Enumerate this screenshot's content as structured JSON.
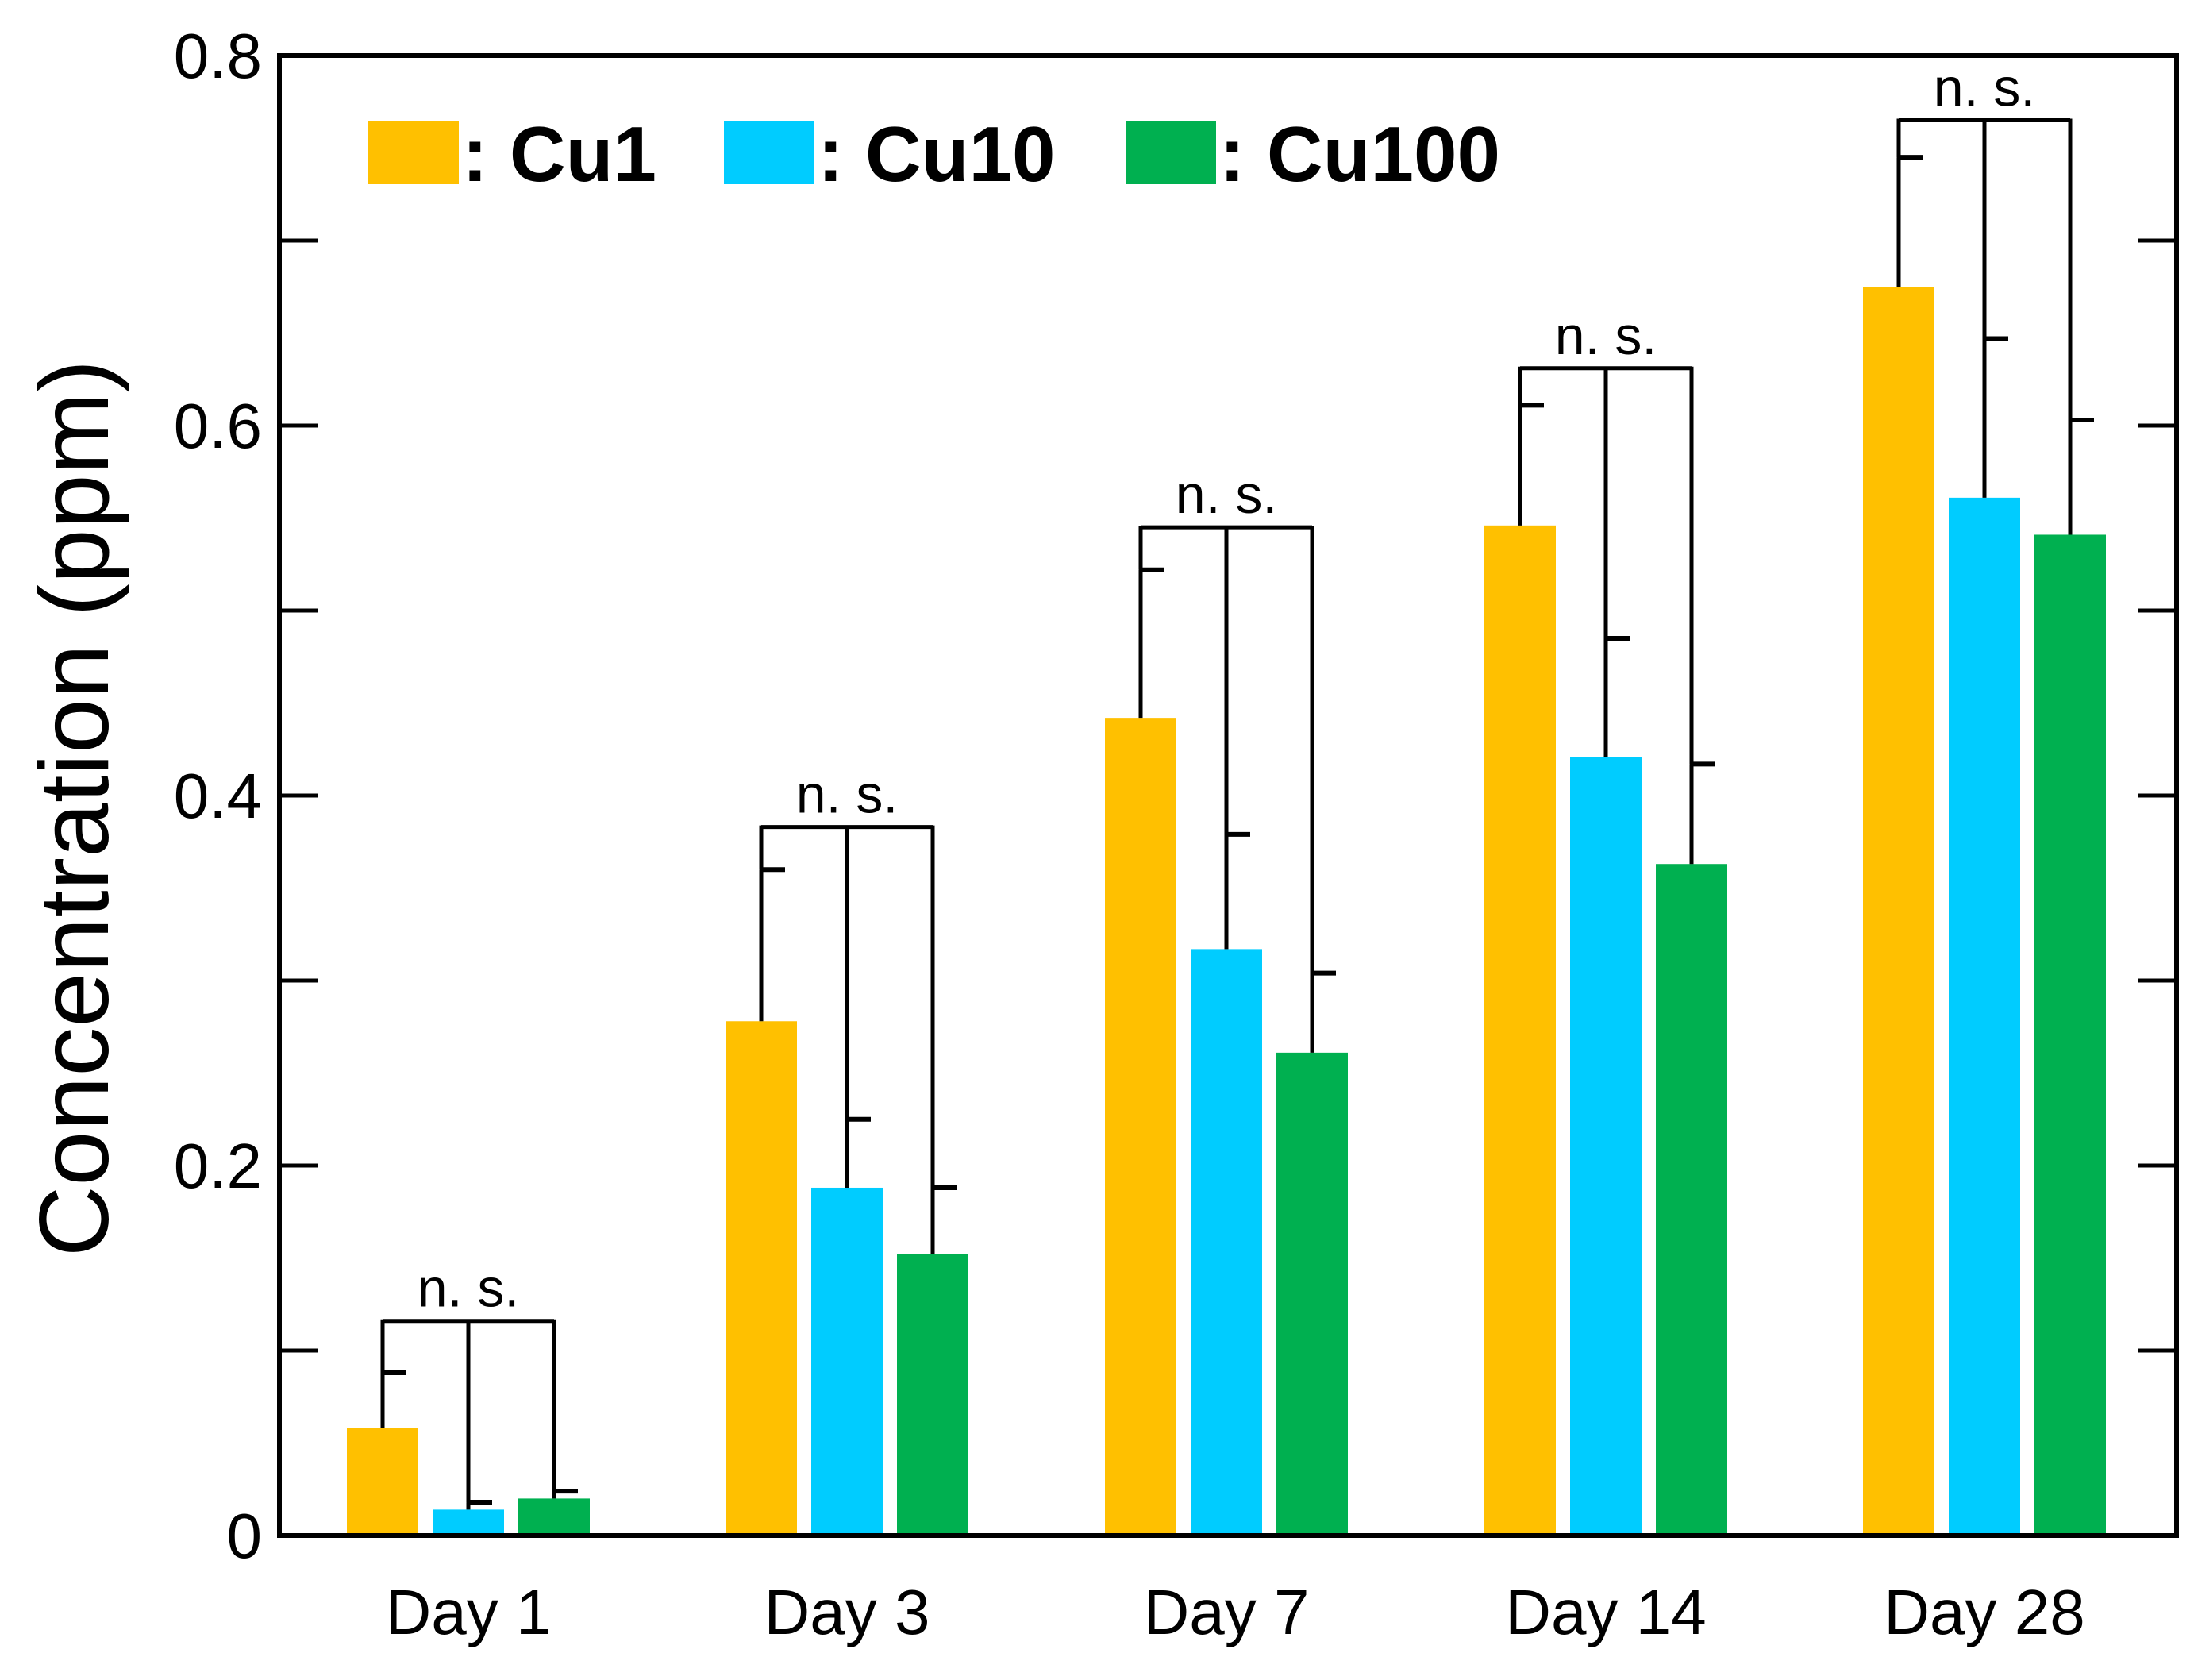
{
  "chart_data": {
    "type": "bar",
    "title": "",
    "xlabel": "",
    "ylabel": "Concentration (ppm)",
    "ylim": [
      0,
      0.8
    ],
    "yticks": [
      0,
      0.1,
      0.2,
      0.3,
      0.4,
      0.5,
      0.6,
      0.7,
      0.8
    ],
    "ytick_labels": [
      "0",
      "0.2",
      "0.4",
      "0.6",
      "0.8"
    ],
    "ytick_label_values": [
      0,
      0.2,
      0.4,
      0.6,
      0.8
    ],
    "categories": [
      "Day 1",
      "Day 3",
      "Day 7",
      "Day 14",
      "Day 28"
    ],
    "series": [
      {
        "name": "Cu1",
        "legend_label": ": Cu1",
        "color": "#FFC000",
        "values": [
          0.058,
          0.278,
          0.442,
          0.546,
          0.675
        ],
        "errors": [
          0.03,
          0.082,
          0.08,
          0.065,
          0.07
        ]
      },
      {
        "name": "Cu10",
        "legend_label": ": Cu10",
        "color": "#00CCFF",
        "values": [
          0.014,
          0.188,
          0.317,
          0.421,
          0.561
        ],
        "errors": [
          0.004,
          0.037,
          0.062,
          0.064,
          0.086
        ]
      },
      {
        "name": "Cu100",
        "legend_label": ": Cu100",
        "color": "#00B050",
        "values": [
          0.02,
          0.152,
          0.261,
          0.363,
          0.541
        ],
        "errors": [
          0.004,
          0.036,
          0.043,
          0.054,
          0.062
        ]
      }
    ],
    "significance": [
      {
        "label": "n. s.",
        "category": "Day 1",
        "bracket_y": 0.116
      },
      {
        "label": "n. s.",
        "category": "Day 3",
        "bracket_y": 0.383
      },
      {
        "label": "n. s.",
        "category": "Day 7",
        "bracket_y": 0.545
      },
      {
        "label": "n. s.",
        "category": "Day 14",
        "bracket_y": 0.631
      },
      {
        "label": "n. s.",
        "category": "Day 28",
        "bracket_y": 0.765
      }
    ],
    "legend_position": "top-left",
    "grid": false
  }
}
